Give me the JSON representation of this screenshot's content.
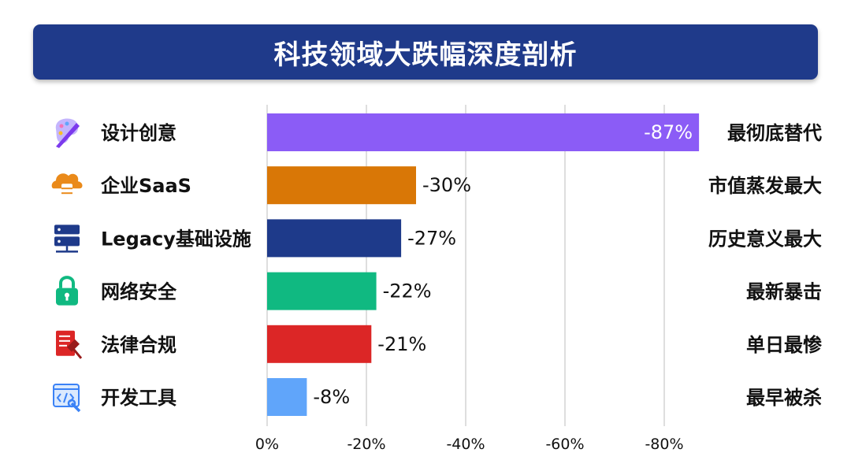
{
  "title": "科技领域大跌幅深度剖析",
  "colors": {
    "title_bg": "#1f3a8a",
    "grid": "#cccccc"
  },
  "chart_data": {
    "type": "bar",
    "orientation": "horizontal",
    "xlim": [
      0,
      -87
    ],
    "xticks": [
      {
        "value": 0,
        "label": "0%"
      },
      {
        "value": -20,
        "label": "-20%"
      },
      {
        "value": -40,
        "label": "-40%"
      },
      {
        "value": -60,
        "label": "-60%"
      },
      {
        "value": -80,
        "label": "-80%"
      }
    ],
    "grid": true,
    "bars": [
      {
        "category": "设计创意",
        "value": -87,
        "value_label": "-87%",
        "note": "最彻底替代",
        "color": "#8b5cf6",
        "icon": "palette-icon",
        "label_inside": true
      },
      {
        "category": "企业SaaS",
        "value": -30,
        "value_label": "-30%",
        "note": "市值蒸发最大",
        "color": "#d97706",
        "icon": "cloud-database-icon",
        "label_inside": false
      },
      {
        "category": "Legacy基础设施",
        "value": -27,
        "value_label": "-27%",
        "note": "历史意义最大",
        "color": "#1e3a8a",
        "icon": "server-icon",
        "label_inside": false
      },
      {
        "category": "网络安全",
        "value": -22,
        "value_label": "-22%",
        "note": "最新暴击",
        "color": "#10b981",
        "icon": "lock-icon",
        "label_inside": false
      },
      {
        "category": "法律合规",
        "value": -21,
        "value_label": "-21%",
        "note": "单日最惨",
        "color": "#dc2626",
        "icon": "legal-document-icon",
        "label_inside": false
      },
      {
        "category": "开发工具",
        "value": -8,
        "value_label": "-8%",
        "note": "最早被杀",
        "color": "#60a5fa",
        "icon": "code-wrench-icon",
        "label_inside": false
      }
    ]
  }
}
